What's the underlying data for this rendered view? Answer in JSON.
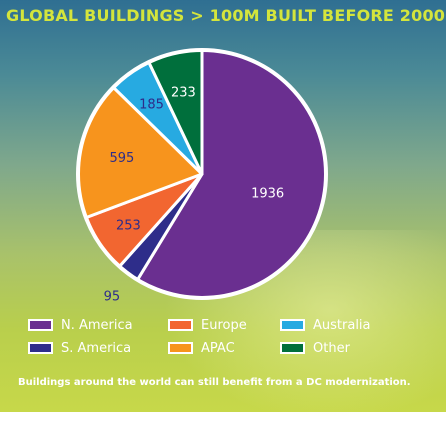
{
  "chart_data": {
    "type": "pie",
    "title": "GLOBAL BUILDINGS > 100M BUILT BEFORE 2000",
    "categories": [
      "N. America",
      "S. America",
      "Europe",
      "APAC",
      "Australia",
      "Other"
    ],
    "values": [
      1936,
      95,
      253,
      595,
      185,
      233
    ],
    "colors": [
      "#6a2f90",
      "#2e2d8a",
      "#f26630",
      "#f7941d",
      "#27aae1",
      "#006f3c"
    ],
    "legend": "bottom",
    "footnote": "Buildings around the world can still benefit from a DC modernization."
  },
  "legend_items": [
    {
      "label": "N. America",
      "color": "#6a2f90"
    },
    {
      "label": "Europe",
      "color": "#f26630"
    },
    {
      "label": "Australia",
      "color": "#27aae1"
    },
    {
      "label": "S. America",
      "color": "#2e2d8a"
    },
    {
      "label": "APAC",
      "color": "#f7941d"
    },
    {
      "label": "Other",
      "color": "#006f3c"
    }
  ]
}
